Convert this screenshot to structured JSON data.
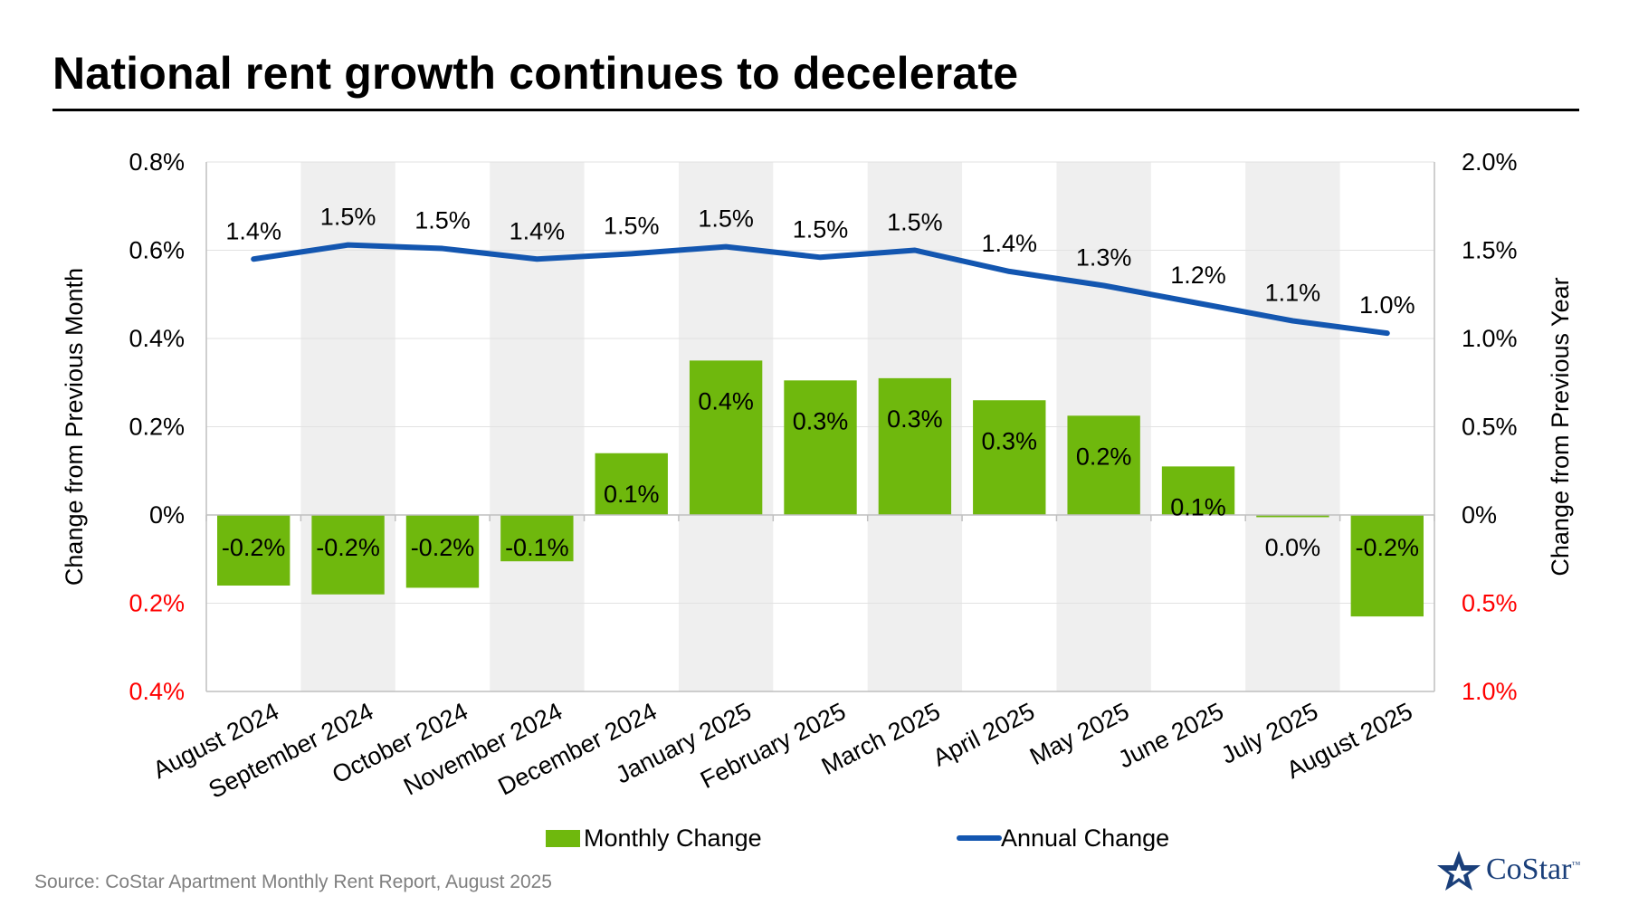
{
  "title": "National rent growth continues to decelerate",
  "source": "Source: CoStar Apartment Monthly Rent Report, August 2025",
  "logo": {
    "text": "CoStar",
    "tm": "™"
  },
  "colors": {
    "bar": "#6fb80d",
    "line": "#1356b0",
    "negative_tick": "#ff0000",
    "band": "#efefef",
    "grid": "#e2e2e2"
  },
  "chart_data": {
    "type": "bar+line",
    "categories": [
      "August 2024",
      "September 2024",
      "October 2024",
      "November 2024",
      "December 2024",
      "January 2025",
      "February 2025",
      "March 2025",
      "April 2025",
      "May 2025",
      "June 2025",
      "July 2025",
      "August 2025"
    ],
    "series": [
      {
        "name": "Monthly Change",
        "type": "bar",
        "axis": "left",
        "values": [
          -0.16,
          -0.18,
          -0.165,
          -0.105,
          0.14,
          0.35,
          0.305,
          0.31,
          0.26,
          0.225,
          0.11,
          -0.005,
          -0.23
        ],
        "labels": [
          "-0.2%",
          "-0.2%",
          "-0.2%",
          "-0.1%",
          "0.1%",
          "0.4%",
          "0.3%",
          "0.3%",
          "0.3%",
          "0.2%",
          "0.1%",
          "0.0%",
          "-0.2%"
        ]
      },
      {
        "name": "Annual Change",
        "type": "line",
        "axis": "right",
        "values": [
          1.45,
          1.53,
          1.51,
          1.45,
          1.48,
          1.52,
          1.46,
          1.5,
          1.38,
          1.3,
          1.2,
          1.1,
          1.03
        ],
        "labels": [
          "1.4%",
          "1.5%",
          "1.5%",
          "1.4%",
          "1.5%",
          "1.5%",
          "1.5%",
          "1.5%",
          "1.4%",
          "1.3%",
          "1.2%",
          "1.1%",
          "1.0%"
        ]
      }
    ],
    "left_axis": {
      "label": "Change from Previous Month",
      "range": [
        -0.4,
        0.8
      ],
      "ticks": [
        {
          "value": 0.8,
          "text": "0.8%",
          "negative": false
        },
        {
          "value": 0.6,
          "text": "0.6%",
          "negative": false
        },
        {
          "value": 0.4,
          "text": "0.4%",
          "negative": false
        },
        {
          "value": 0.2,
          "text": "0.2%",
          "negative": false
        },
        {
          "value": 0,
          "text": "0%",
          "negative": false
        },
        {
          "value": -0.2,
          "text": "0.2%",
          "negative": true
        },
        {
          "value": -0.4,
          "text": "0.4%",
          "negative": true
        }
      ]
    },
    "right_axis": {
      "label": "Change from Previous Year",
      "range": [
        -1.0,
        2.0
      ],
      "ticks": [
        {
          "value": 2.0,
          "text": "2.0%",
          "negative": false
        },
        {
          "value": 1.5,
          "text": "1.5%",
          "negative": false
        },
        {
          "value": 1.0,
          "text": "1.0%",
          "negative": false
        },
        {
          "value": 0.5,
          "text": "0.5%",
          "negative": false
        },
        {
          "value": 0,
          "text": "0%",
          "negative": false
        },
        {
          "value": -0.5,
          "text": "0.5%",
          "negative": true
        },
        {
          "value": -1.0,
          "text": "1.0%",
          "negative": true
        }
      ]
    },
    "legend": {
      "position": "bottom",
      "items": [
        {
          "text": "Monthly Change",
          "kind": "bar"
        },
        {
          "text": "Annual Change",
          "kind": "line"
        }
      ]
    }
  }
}
